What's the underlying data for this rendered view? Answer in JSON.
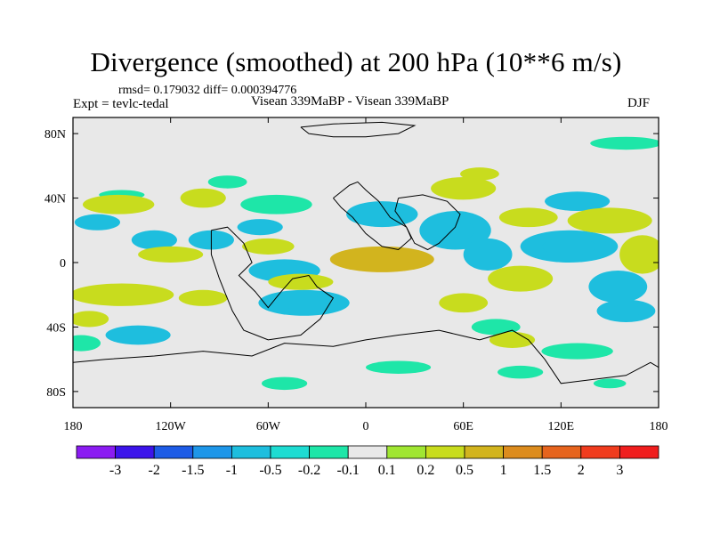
{
  "chart_data": {
    "type": "heatmap",
    "title": "Divergence (smoothed) at 200 hPa (10**6 m/s)",
    "rmsd_label": "rmsd= 0.179032",
    "diff_label": "diff= 0.000394776",
    "experiment": "Expt = tevlc-tedal",
    "runs": "Visean 339MaBP - Visean 339MaBP",
    "season": "DJF",
    "xlabel": "",
    "ylabel": "",
    "xlim": [
      -180,
      180
    ],
    "ylim": [
      -90,
      90
    ],
    "x_ticks": [
      {
        "value": -180,
        "label": "180"
      },
      {
        "value": -120,
        "label": "120W"
      },
      {
        "value": -60,
        "label": "60W"
      },
      {
        "value": 0,
        "label": "0"
      },
      {
        "value": 60,
        "label": "60E"
      },
      {
        "value": 120,
        "label": "120E"
      },
      {
        "value": 180,
        "label": "180"
      }
    ],
    "y_ticks": [
      {
        "value": 80,
        "label": "80N"
      },
      {
        "value": 40,
        "label": "40N"
      },
      {
        "value": 0,
        "label": "0"
      },
      {
        "value": -40,
        "label": "40S"
      },
      {
        "value": -80,
        "label": "80S"
      }
    ],
    "legend": {
      "colors": [
        "#8b1cf2",
        "#3c14ea",
        "#1e5ce6",
        "#1e96e8",
        "#1ebede",
        "#1edcd2",
        "#1ee6a8",
        "#e8e8e8",
        "#a0e632",
        "#c8dc1e",
        "#d2b41e",
        "#dc8c1e",
        "#e6641e",
        "#f03c1e",
        "#f01e1e"
      ],
      "labels": [
        "-3",
        "-2",
        "-1.5",
        "-1",
        "-0.5",
        "-0.2",
        "-0.1",
        "0.1",
        "0.2",
        "0.5",
        "1",
        "1.5",
        "2",
        "3"
      ]
    },
    "regions": [
      {
        "cx": 160,
        "cy": 74,
        "rx": 22,
        "ry": 4,
        "v": -0.15
      },
      {
        "cx": -85,
        "cy": 50,
        "rx": 12,
        "ry": 4,
        "v": -0.15
      },
      {
        "cx": -150,
        "cy": 42,
        "rx": 14,
        "ry": 3,
        "v": -0.15
      },
      {
        "cx": -55,
        "cy": 36,
        "rx": 22,
        "ry": 6,
        "v": -0.15
      },
      {
        "cx": -165,
        "cy": 25,
        "rx": 14,
        "ry": 5,
        "v": -0.5
      },
      {
        "cx": -130,
        "cy": 14,
        "rx": 14,
        "ry": 6,
        "v": -0.5
      },
      {
        "cx": -95,
        "cy": 14,
        "rx": 14,
        "ry": 6,
        "v": -0.5
      },
      {
        "cx": -65,
        "cy": 22,
        "rx": 14,
        "ry": 5,
        "v": -0.5
      },
      {
        "cx": -50,
        "cy": -5,
        "rx": 22,
        "ry": 7,
        "v": -0.8
      },
      {
        "cx": -38,
        "cy": -25,
        "rx": 28,
        "ry": 8,
        "v": -0.5
      },
      {
        "cx": -140,
        "cy": -45,
        "rx": 20,
        "ry": 6,
        "v": -0.5
      },
      {
        "cx": 10,
        "cy": 30,
        "rx": 22,
        "ry": 8,
        "v": -0.5
      },
      {
        "cx": 55,
        "cy": 20,
        "rx": 22,
        "ry": 12,
        "v": -0.5
      },
      {
        "cx": 75,
        "cy": 5,
        "rx": 15,
        "ry": 10,
        "v": -0.5
      },
      {
        "cx": 125,
        "cy": 10,
        "rx": 30,
        "ry": 10,
        "v": -0.5
      },
      {
        "cx": 130,
        "cy": 38,
        "rx": 20,
        "ry": 6,
        "v": -0.5
      },
      {
        "cx": 155,
        "cy": -15,
        "rx": 18,
        "ry": 10,
        "v": -0.5
      },
      {
        "cx": 160,
        "cy": -30,
        "rx": 18,
        "ry": 7,
        "v": -0.5
      },
      {
        "cx": 80,
        "cy": -40,
        "rx": 15,
        "ry": 5,
        "v": -0.15
      },
      {
        "cx": 130,
        "cy": -55,
        "rx": 22,
        "ry": 5,
        "v": -0.15
      },
      {
        "cx": -175,
        "cy": -50,
        "rx": 12,
        "ry": 5,
        "v": -0.15
      },
      {
        "cx": 20,
        "cy": -65,
        "rx": 20,
        "ry": 4,
        "v": -0.15
      },
      {
        "cx": -50,
        "cy": -75,
        "rx": 14,
        "ry": 4,
        "v": -0.15
      },
      {
        "cx": 95,
        "cy": -68,
        "rx": 14,
        "ry": 4,
        "v": -0.15
      },
      {
        "cx": 150,
        "cy": -75,
        "rx": 10,
        "ry": 3,
        "v": -0.15
      },
      {
        "cx": 70,
        "cy": 55,
        "rx": 12,
        "ry": 4,
        "v": 0.3
      },
      {
        "cx": 60,
        "cy": 46,
        "rx": 20,
        "ry": 7,
        "v": 0.3
      },
      {
        "cx": -100,
        "cy": 40,
        "rx": 14,
        "ry": 6,
        "v": 0.3
      },
      {
        "cx": -152,
        "cy": 36,
        "rx": 22,
        "ry": 6,
        "v": 0.3
      },
      {
        "cx": 150,
        "cy": 26,
        "rx": 26,
        "ry": 8,
        "v": 0.3
      },
      {
        "cx": 100,
        "cy": 28,
        "rx": 18,
        "ry": 6,
        "v": 0.3
      },
      {
        "cx": -120,
        "cy": 5,
        "rx": 20,
        "ry": 5,
        "v": 0.3
      },
      {
        "cx": 10,
        "cy": 2,
        "rx": 32,
        "ry": 8,
        "v": 0.6
      },
      {
        "cx": -60,
        "cy": 10,
        "rx": 16,
        "ry": 5,
        "v": 0.3
      },
      {
        "cx": 170,
        "cy": 5,
        "rx": 14,
        "ry": 12,
        "v": 0.3
      },
      {
        "cx": 95,
        "cy": -10,
        "rx": 20,
        "ry": 8,
        "v": 0.3
      },
      {
        "cx": -150,
        "cy": -20,
        "rx": 32,
        "ry": 7,
        "v": 0.3
      },
      {
        "cx": -100,
        "cy": -22,
        "rx": 15,
        "ry": 5,
        "v": 0.3
      },
      {
        "cx": -40,
        "cy": -12,
        "rx": 20,
        "ry": 5,
        "v": 0.3
      },
      {
        "cx": 60,
        "cy": -25,
        "rx": 15,
        "ry": 6,
        "v": 0.3
      },
      {
        "cx": 90,
        "cy": -48,
        "rx": 14,
        "ry": 5,
        "v": 0.3
      },
      {
        "cx": -170,
        "cy": -35,
        "rx": 12,
        "ry": 5,
        "v": 0.3
      }
    ],
    "coastlines": [
      [
        [
          -40,
          84
        ],
        [
          -20,
          86
        ],
        [
          10,
          87
        ],
        [
          30,
          85
        ],
        [
          20,
          80
        ],
        [
          0,
          78
        ],
        [
          -20,
          78
        ],
        [
          -35,
          80
        ],
        [
          -40,
          84
        ]
      ],
      [
        [
          -20,
          40
        ],
        [
          -10,
          48
        ],
        [
          -5,
          50
        ],
        [
          0,
          45
        ],
        [
          8,
          38
        ],
        [
          15,
          28
        ],
        [
          25,
          22
        ],
        [
          28,
          15
        ],
        [
          20,
          8
        ],
        [
          10,
          10
        ],
        [
          0,
          18
        ],
        [
          -8,
          28
        ],
        [
          -15,
          34
        ],
        [
          -20,
          40
        ]
      ],
      [
        [
          20,
          40
        ],
        [
          35,
          42
        ],
        [
          50,
          38
        ],
        [
          58,
          30
        ],
        [
          55,
          22
        ],
        [
          45,
          12
        ],
        [
          38,
          8
        ],
        [
          30,
          12
        ],
        [
          25,
          22
        ],
        [
          18,
          32
        ],
        [
          20,
          40
        ]
      ],
      [
        [
          -95,
          20
        ],
        [
          -85,
          22
        ],
        [
          -75,
          12
        ],
        [
          -70,
          0
        ],
        [
          -78,
          -8
        ],
        [
          -68,
          -18
        ],
        [
          -60,
          -28
        ],
        [
          -52,
          -18
        ],
        [
          -45,
          -10
        ],
        [
          -35,
          -8
        ],
        [
          -30,
          -15
        ],
        [
          -20,
          -22
        ],
        [
          -28,
          -35
        ],
        [
          -40,
          -45
        ],
        [
          -60,
          -48
        ],
        [
          -75,
          -42
        ],
        [
          -82,
          -30
        ],
        [
          -90,
          -10
        ],
        [
          -95,
          5
        ],
        [
          -95,
          20
        ]
      ],
      [
        [
          -180,
          -62
        ],
        [
          -160,
          -60
        ],
        [
          -130,
          -58
        ],
        [
          -100,
          -55
        ],
        [
          -70,
          -58
        ],
        [
          -50,
          -50
        ],
        [
          -20,
          -52
        ],
        [
          0,
          -48
        ],
        [
          20,
          -45
        ],
        [
          45,
          -42
        ],
        [
          70,
          -48
        ],
        [
          90,
          -42
        ],
        [
          100,
          -48
        ],
        [
          110,
          -60
        ],
        [
          120,
          -75
        ],
        [
          160,
          -70
        ],
        [
          175,
          -62
        ],
        [
          180,
          -65
        ]
      ]
    ]
  }
}
